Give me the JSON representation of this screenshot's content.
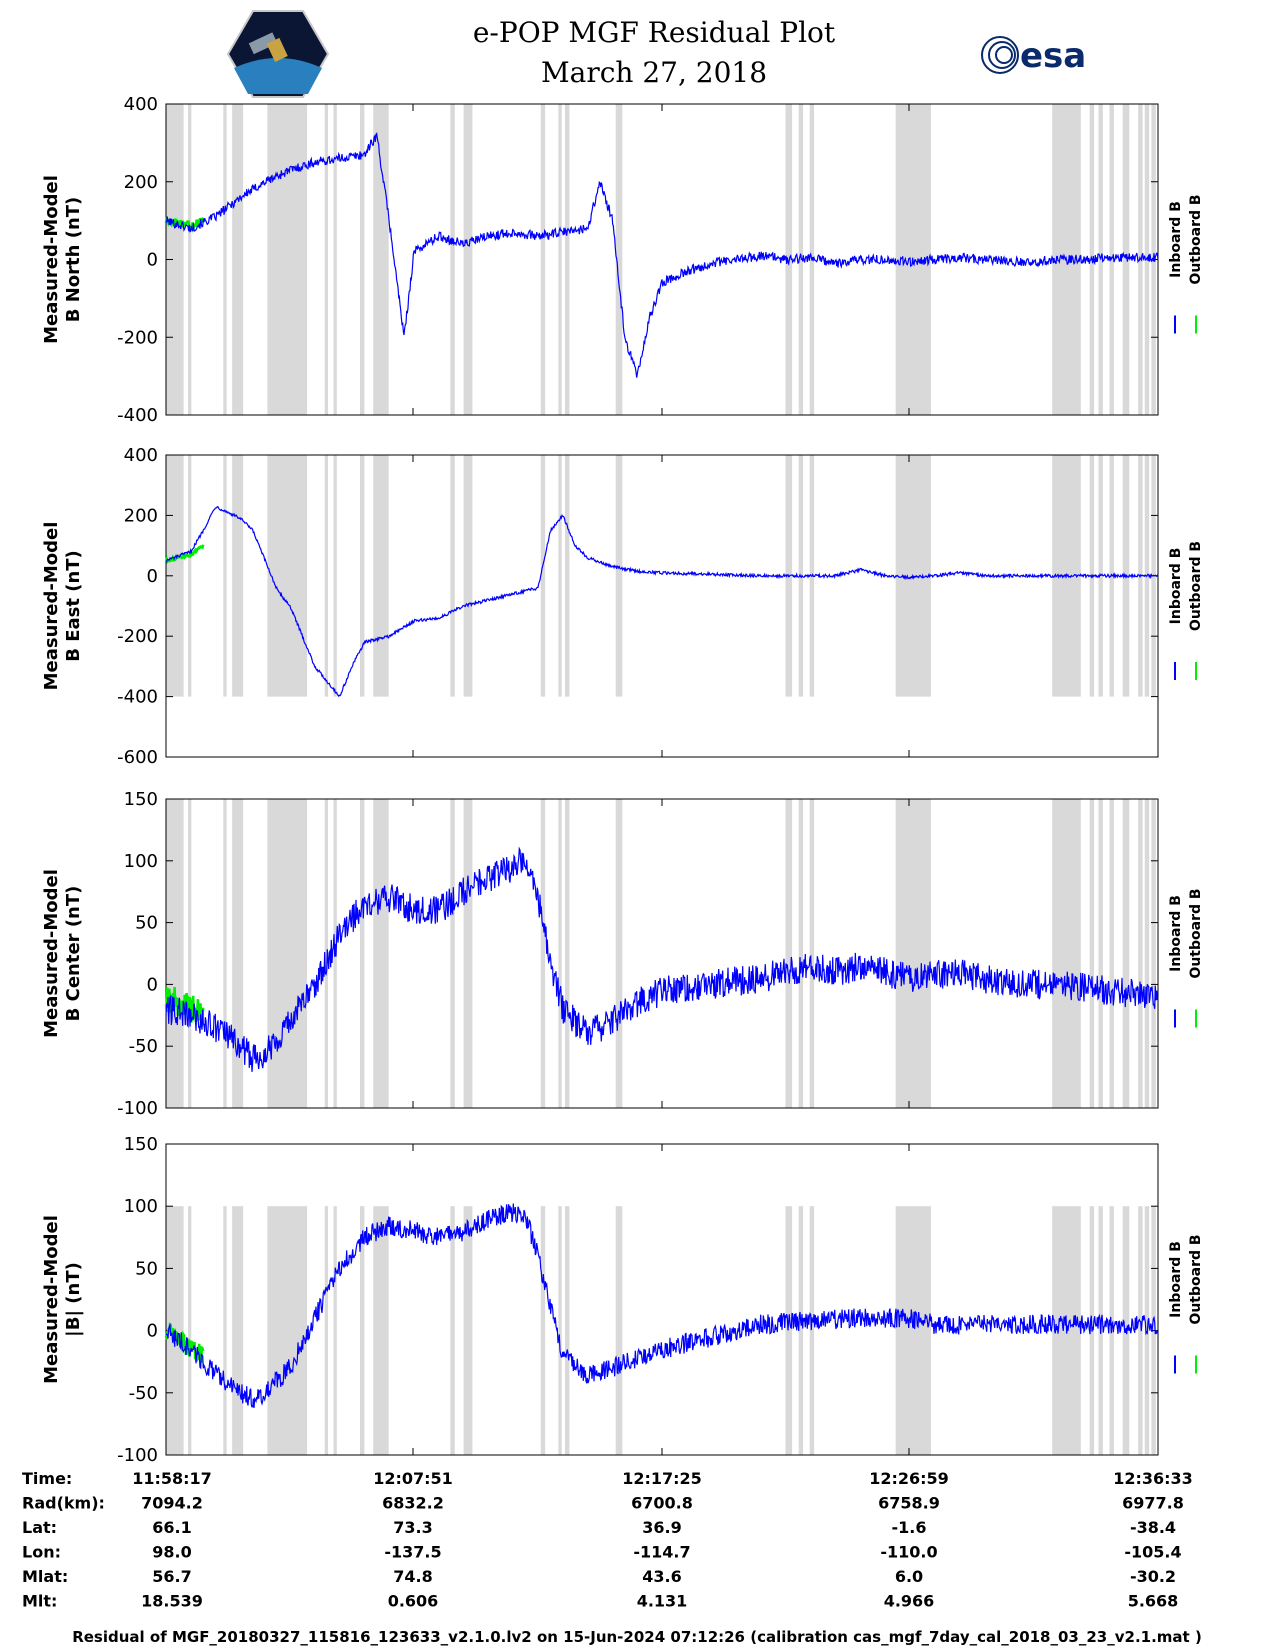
{
  "title": "e-POP MGF Residual Plot",
  "subtitle": "March 27, 2018",
  "logos": {
    "left": "cassiope-mission-patch",
    "right_text": "esa"
  },
  "legend": {
    "inboard_label": "Inboard B",
    "outboard_label": "Outboard B",
    "inboard_color": "#0000ff",
    "outboard_color": "#00ee00"
  },
  "shading_color": "#d9d9d9",
  "footer": "Residual of MGF_20180327_115816_123633_v2.1.0.lv2 on 15-Jun-2024 07:12:26 (calibration cas_mgf_7day_cal_2018_03_23_v2.1.mat )",
  "table": {
    "rows": [
      {
        "label": "Time:",
        "values": [
          "11:58:17",
          "12:07:51",
          "12:17:25",
          "12:26:59",
          "12:36:33"
        ]
      },
      {
        "label": "Rad(km):",
        "values": [
          "7094.2",
          "6832.2",
          "6700.8",
          "6758.9",
          "6977.8"
        ]
      },
      {
        "label": "Lat:",
        "values": [
          "66.1",
          "73.3",
          "36.9",
          "-1.6",
          "-38.4"
        ]
      },
      {
        "label": "Lon:",
        "values": [
          "98.0",
          "-137.5",
          "-114.7",
          "-110.0",
          "-105.4"
        ]
      },
      {
        "label": "Mlat:",
        "values": [
          "56.7",
          "74.8",
          "43.6",
          "6.0",
          "-30.2"
        ]
      },
      {
        "label": "Mlt:",
        "values": [
          "18.539",
          "0.606",
          "4.131",
          "4.966",
          "5.668"
        ]
      }
    ]
  },
  "chart_data": [
    {
      "type": "line",
      "ylabel_line1": "Measured-Model",
      "ylabel_line2": "B North (nT)",
      "xlim": [
        0,
        40
      ],
      "xticks": [
        0,
        9.57,
        19.13,
        28.7,
        38.27
      ],
      "ylim": [
        -400,
        400
      ],
      "yticks": [
        -400,
        -200,
        0,
        200,
        400
      ],
      "shade_range": [
        -400,
        400
      ],
      "noise": 12,
      "inboard": [
        [
          0,
          100
        ],
        [
          1,
          80
        ],
        [
          2,
          110
        ],
        [
          3,
          160
        ],
        [
          4,
          200
        ],
        [
          5,
          230
        ],
        [
          6,
          250
        ],
        [
          7,
          260
        ],
        [
          8,
          270
        ],
        [
          8.5,
          320
        ],
        [
          9,
          100
        ],
        [
          9.3,
          -50
        ],
        [
          9.6,
          -200
        ],
        [
          10,
          20
        ],
        [
          11,
          60
        ],
        [
          12,
          40
        ],
        [
          13,
          60
        ],
        [
          14,
          70
        ],
        [
          15,
          60
        ],
        [
          16,
          70
        ],
        [
          17,
          80
        ],
        [
          17.5,
          200
        ],
        [
          18,
          100
        ],
        [
          18.5,
          -200
        ],
        [
          19,
          -300
        ],
        [
          19.5,
          -150
        ],
        [
          20,
          -60
        ],
        [
          21,
          -30
        ],
        [
          22,
          -10
        ],
        [
          23,
          0
        ],
        [
          24,
          10
        ],
        [
          25,
          0
        ],
        [
          26,
          5
        ],
        [
          27,
          -10
        ],
        [
          28,
          0
        ],
        [
          29,
          0
        ],
        [
          30,
          -5
        ],
        [
          31,
          0
        ],
        [
          32,
          5
        ],
        [
          33,
          0
        ],
        [
          34,
          -5
        ],
        [
          35,
          -5
        ],
        [
          36,
          0
        ],
        [
          37,
          0
        ],
        [
          38,
          5
        ],
        [
          39,
          5
        ],
        [
          40,
          5
        ]
      ],
      "outboard": [
        [
          0,
          100
        ],
        [
          1,
          90
        ],
        [
          1.5,
          100
        ]
      ]
    },
    {
      "type": "line",
      "ylabel_line1": "Measured-Model",
      "ylabel_line2": "B East (nT)",
      "xlim": [
        0,
        40
      ],
      "xticks": [
        0,
        9.57,
        19.13,
        28.7,
        38.27
      ],
      "ylim": [
        -600,
        400
      ],
      "yticks": [
        -600,
        -400,
        -200,
        0,
        200,
        400
      ],
      "shade_range": [
        -400,
        400
      ],
      "noise": 5,
      "inboard": [
        [
          0,
          50
        ],
        [
          1,
          80
        ],
        [
          1.5,
          150
        ],
        [
          2,
          230
        ],
        [
          3,
          190
        ],
        [
          3.5,
          150
        ],
        [
          4,
          50
        ],
        [
          4.5,
          -50
        ],
        [
          5,
          -100
        ],
        [
          5.5,
          -200
        ],
        [
          6,
          -300
        ],
        [
          6.5,
          -350
        ],
        [
          7,
          -400
        ],
        [
          7.5,
          -300
        ],
        [
          8,
          -220
        ],
        [
          9,
          -200
        ],
        [
          10,
          -150
        ],
        [
          11,
          -140
        ],
        [
          12,
          -100
        ],
        [
          13,
          -80
        ],
        [
          14,
          -60
        ],
        [
          15,
          -40
        ],
        [
          15.5,
          150
        ],
        [
          16,
          200
        ],
        [
          16.5,
          100
        ],
        [
          17,
          60
        ],
        [
          18,
          30
        ],
        [
          19,
          15
        ],
        [
          20,
          10
        ],
        [
          22,
          5
        ],
        [
          24,
          0
        ],
        [
          26,
          0
        ],
        [
          27,
          0
        ],
        [
          28,
          20
        ],
        [
          29,
          0
        ],
        [
          30,
          -5
        ],
        [
          31,
          0
        ],
        [
          32,
          10
        ],
        [
          33,
          0
        ],
        [
          34,
          0
        ],
        [
          36,
          0
        ],
        [
          38,
          0
        ],
        [
          40,
          0
        ]
      ],
      "outboard": [
        [
          0,
          50
        ],
        [
          1,
          70
        ],
        [
          1.5,
          100
        ]
      ]
    },
    {
      "type": "line",
      "ylabel_line1": "Measured-Model",
      "ylabel_line2": "B Center (nT)",
      "xlim": [
        0,
        40
      ],
      "xticks": [
        0,
        9.57,
        19.13,
        28.7,
        38.27
      ],
      "ylim": [
        -100,
        150
      ],
      "yticks": [
        -100,
        -50,
        0,
        50,
        100,
        150
      ],
      "shade_range": [
        -100,
        150
      ],
      "noise": 12,
      "inboard": [
        [
          0,
          -20
        ],
        [
          1,
          -25
        ],
        [
          2,
          -35
        ],
        [
          3,
          -50
        ],
        [
          3.5,
          -60
        ],
        [
          4,
          -55
        ],
        [
          5,
          -30
        ],
        [
          6,
          0
        ],
        [
          7,
          40
        ],
        [
          8,
          65
        ],
        [
          9,
          70
        ],
        [
          10,
          60
        ],
        [
          11,
          60
        ],
        [
          12,
          75
        ],
        [
          13,
          85
        ],
        [
          14,
          95
        ],
        [
          14.5,
          105
        ],
        [
          15,
          70
        ],
        [
          15.5,
          20
        ],
        [
          16,
          -20
        ],
        [
          17,
          -40
        ],
        [
          18,
          -30
        ],
        [
          19,
          -15
        ],
        [
          20,
          -5
        ],
        [
          22,
          0
        ],
        [
          24,
          5
        ],
        [
          25,
          10
        ],
        [
          26,
          15
        ],
        [
          27,
          10
        ],
        [
          28,
          15
        ],
        [
          30,
          5
        ],
        [
          32,
          10
        ],
        [
          34,
          0
        ],
        [
          36,
          0
        ],
        [
          38,
          -5
        ],
        [
          40,
          -10
        ]
      ],
      "outboard": [
        [
          0,
          -10
        ],
        [
          1,
          -20
        ],
        [
          1.5,
          -25
        ]
      ]
    },
    {
      "type": "line",
      "ylabel_line1": "Measured-Model",
      "ylabel_line2": "|B| (nT)",
      "xlim": [
        0,
        40
      ],
      "xticks": [
        0,
        9.57,
        19.13,
        28.7,
        38.27
      ],
      "ylim": [
        -100,
        150
      ],
      "yticks": [
        -100,
        -50,
        0,
        50,
        100,
        150
      ],
      "shade_range": [
        -100,
        100
      ],
      "noise": 8,
      "inboard": [
        [
          0,
          0
        ],
        [
          1,
          -15
        ],
        [
          2,
          -35
        ],
        [
          3,
          -50
        ],
        [
          3.5,
          -55
        ],
        [
          4,
          -50
        ],
        [
          5,
          -30
        ],
        [
          6,
          10
        ],
        [
          7,
          50
        ],
        [
          8,
          75
        ],
        [
          9,
          85
        ],
        [
          10,
          80
        ],
        [
          11,
          75
        ],
        [
          12,
          80
        ],
        [
          13,
          90
        ],
        [
          14,
          95
        ],
        [
          14.5,
          92
        ],
        [
          15,
          60
        ],
        [
          15.5,
          20
        ],
        [
          16,
          -20
        ],
        [
          17,
          -35
        ],
        [
          18,
          -30
        ],
        [
          20,
          -15
        ],
        [
          22,
          -5
        ],
        [
          24,
          5
        ],
        [
          26,
          8
        ],
        [
          28,
          10
        ],
        [
          30,
          10
        ],
        [
          31,
          5
        ],
        [
          32,
          5
        ],
        [
          34,
          5
        ],
        [
          36,
          5
        ],
        [
          38,
          5
        ],
        [
          40,
          5
        ]
      ],
      "outboard": [
        [
          0,
          0
        ],
        [
          1,
          -15
        ],
        [
          1.5,
          -20
        ]
      ]
    }
  ],
  "shaded_intervals": [
    [
      0,
      0.8
    ],
    [
      1,
      1.15
    ],
    [
      2.6,
      2.75
    ],
    [
      3,
      3.5
    ],
    [
      4.6,
      6.4
    ],
    [
      7.2,
      7.35
    ],
    [
      7.6,
      7.75
    ],
    [
      8.8,
      9.0
    ],
    [
      9.4,
      10.1
    ],
    [
      12.9,
      13.1
    ],
    [
      13.5,
      13.9
    ],
    [
      17.0,
      17.2
    ],
    [
      17.8,
      17.95
    ],
    [
      18.1,
      18.3
    ],
    [
      20.4,
      20.7
    ],
    [
      28.1,
      28.4
    ],
    [
      28.7,
      28.9
    ],
    [
      29.2,
      29.4
    ],
    [
      33.1,
      34.7
    ],
    [
      40.2,
      41.5
    ],
    [
      41.9,
      42.1
    ],
    [
      42.3,
      42.5
    ],
    [
      42.8,
      43.0
    ],
    [
      43.4,
      43.7
    ],
    [
      44.1,
      44.3
    ],
    [
      44.4,
      44.6
    ],
    [
      44.7,
      44.9
    ]
  ],
  "shading_xmax": 45
}
